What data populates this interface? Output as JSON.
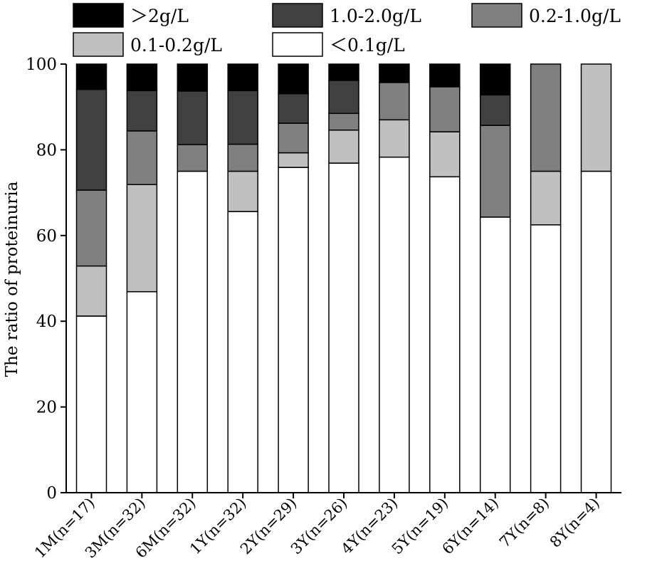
{
  "chart_data": {
    "type": "bar",
    "stacked": true,
    "title": "",
    "xlabel": "",
    "ylabel": "The ratio of proteinuria",
    "ylim": [
      0,
      100
    ],
    "yticks": [
      0,
      20,
      40,
      60,
      80,
      100
    ],
    "grid": false,
    "legend_position": "top",
    "categories": [
      "1M(n=17)",
      "3M(n=32)",
      "6M(n=32)",
      "1Y(n=32)",
      "2Y(n=29)",
      "3Y(n=26)",
      "4Y(n=23)",
      "5Y(n=19)",
      "6Y(n=14)",
      "7Y(n=8)",
      "8Y(n=4)"
    ],
    "series": [
      {
        "name": "<0.1g/L",
        "color": "#ffffff",
        "values": [
          41.2,
          46.9,
          75.0,
          65.6,
          75.9,
          76.9,
          78.3,
          73.7,
          64.3,
          62.5,
          75.0
        ]
      },
      {
        "name": "0.1-0.2g/L",
        "color": "#c0c0c0",
        "values": [
          11.7,
          25.0,
          0.0,
          9.4,
          3.4,
          7.7,
          8.7,
          10.5,
          0.0,
          12.5,
          25.0
        ]
      },
      {
        "name": "0.2-1.0g/L",
        "color": "#808080",
        "values": [
          17.7,
          12.5,
          6.2,
          6.3,
          6.9,
          3.9,
          8.7,
          10.5,
          21.4,
          25.0,
          0.0
        ]
      },
      {
        "name": "1.0-2.0g/L",
        "color": "#404040",
        "values": [
          23.5,
          9.4,
          12.5,
          12.5,
          6.9,
          7.7,
          0.0,
          0.0,
          7.1,
          0.0,
          0.0
        ]
      },
      {
        "name": ">2g/L",
        "color": "#000000",
        "values": [
          5.9,
          6.2,
          6.3,
          6.2,
          6.9,
          3.8,
          4.3,
          5.3,
          7.2,
          0.0,
          0.0
        ]
      }
    ],
    "legend": [
      {
        "label": "＞2g/L",
        "color": "#000000"
      },
      {
        "label": "1.0-2.0g/L",
        "color": "#404040"
      },
      {
        "label": "0.2-1.0g/L",
        "color": "#808080"
      },
      {
        "label": "0.1-0.2g/L",
        "color": "#c0c0c0"
      },
      {
        "label": "＜0.1g/L",
        "color": "#ffffff"
      }
    ]
  }
}
